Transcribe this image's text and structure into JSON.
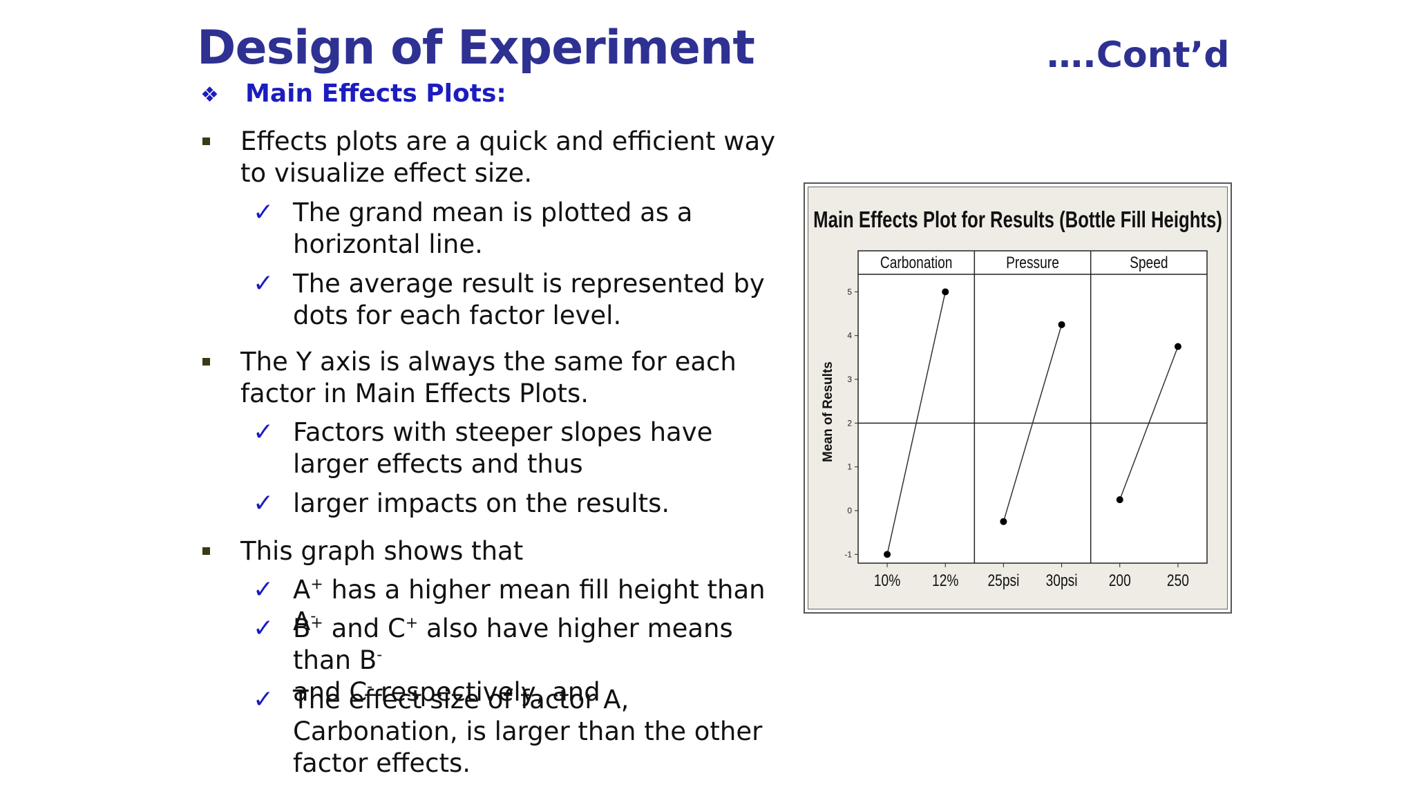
{
  "slide": {
    "title": "Design of Experiment",
    "contd": "….Cont’d",
    "section": "Main Effects Plots:",
    "bullets": [
      {
        "text": "Effects plots are a quick and efficient way to visualize effect size.",
        "subs": [
          "The grand mean is plotted as a horizontal line.",
          "The average result is represented by dots for each factor level."
        ]
      },
      {
        "text": "The Y axis is always the same for each factor in Main Effects Plots.",
        "subs": [
          "Factors with steeper slopes have larger effects and thus",
          "larger impacts on the results."
        ]
      },
      {
        "text": "This graph shows that",
        "subs": [
          {
            "a": "A",
            "a_sup": "+",
            "b": " has a higher mean fill height than  A",
            "b_sup": "-"
          },
          {
            "a": "B",
            "a_sup": "+",
            "b": " and C",
            "b_sup": "+",
            "c": " also have higher means than B",
            "c_sup": "-",
            "d": "and C",
            "d_sup": "-",
            "e": " respectively, and"
          },
          "The effect size of factor A, Carbonation, is larger than the other factor effects."
        ]
      }
    ]
  },
  "colors": {
    "title": "#2e3192",
    "bullet_check": "#1c1cc0",
    "square_bullet": "#3a3a14",
    "plot_bg": "#efece5"
  },
  "chart_data": {
    "type": "line",
    "title": "Main Effects Plot for Results (Bottle Fill Heights)",
    "ylabel": "Mean of Results",
    "ylim": [
      -1.2,
      5.4
    ],
    "yticks": [
      "-1",
      "0",
      "1",
      "2",
      "3",
      "4",
      "5"
    ],
    "grand_mean": 2,
    "panels": [
      {
        "name": "Carbonation",
        "x": [
          "10%",
          "12%"
        ],
        "values": [
          -1,
          5
        ]
      },
      {
        "name": "Pressure",
        "x": [
          "25psi",
          "30psi"
        ],
        "values": [
          -0.25,
          4.25
        ]
      },
      {
        "name": "Speed",
        "x": [
          "200",
          "250"
        ],
        "values": [
          0.25,
          3.75
        ]
      }
    ]
  }
}
